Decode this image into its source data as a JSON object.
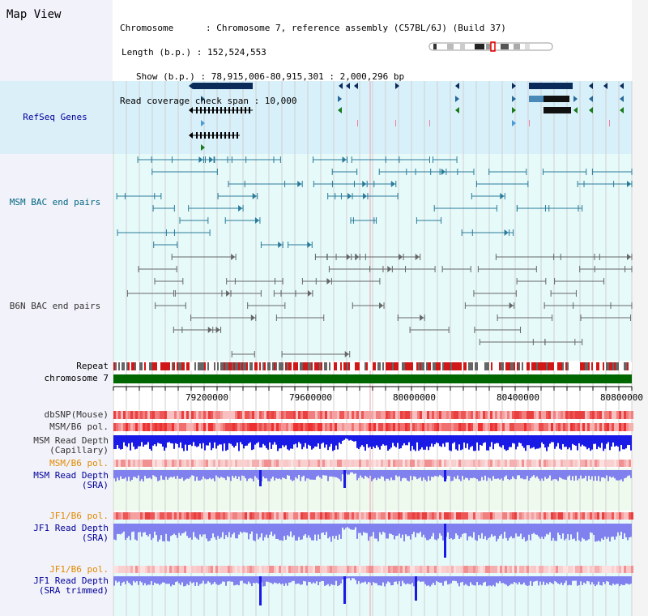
{
  "title": "Map View",
  "info": {
    "line1": "Chromosome      : Chromosome 7, reference assembly (C57BL/6J) (Build 37)",
    "line2": "Length (b.p.) : 152,524,553",
    "line3": "Show (b.p.) : 78,915,006-80,915,301 : 2,000,296 bp",
    "line4": "Read coverage check span : 10,000"
  },
  "tracks": {
    "refseq": "RefSeq Genes",
    "msm_bac": "MSM BAC end pairs",
    "b6n_bac": "B6N BAC end pairs",
    "repeat": "Repeat",
    "chromosome": "chromosome 7",
    "dbsnp": "dbSNP(Mouse)",
    "msm_b6_pol": "MSM/B6 pol.",
    "msm_depth_cap_1": "MSM Read Depth",
    "msm_depth_cap_2": "(Capillary)",
    "msm_b6_pol2": "MSM/B6 pol.",
    "msm_depth_sra_1": "MSM Read Depth",
    "msm_depth_sra_2": "(SRA)",
    "jf1_b6_pol": "JF1/B6 pol.",
    "jf1_depth_sra_1": "JF1 Read Depth",
    "jf1_depth_sra_2": "(SRA)",
    "jf1_b6_pol2": "JF1/B6 pol.",
    "jf1_depth_trim_1": "JF1 Read Depth",
    "jf1_depth_trim_2": "(SRA trimmed)"
  },
  "axis": {
    "ticks": [
      "79200000",
      "79600000",
      "80000000",
      "80400000",
      "80800000"
    ]
  },
  "colors": {
    "refseq_bg": "#d8f0fa",
    "bac_bg": "#e6fafa",
    "label_bg": "#f2f2fa",
    "msm_color": "#2a7a9a",
    "b6n_color": "#666666",
    "depth_blue": "#1a1ae6",
    "depth_light": "#8080ee",
    "chrom_green": "#006600",
    "pol_red": "#ee3333"
  }
}
